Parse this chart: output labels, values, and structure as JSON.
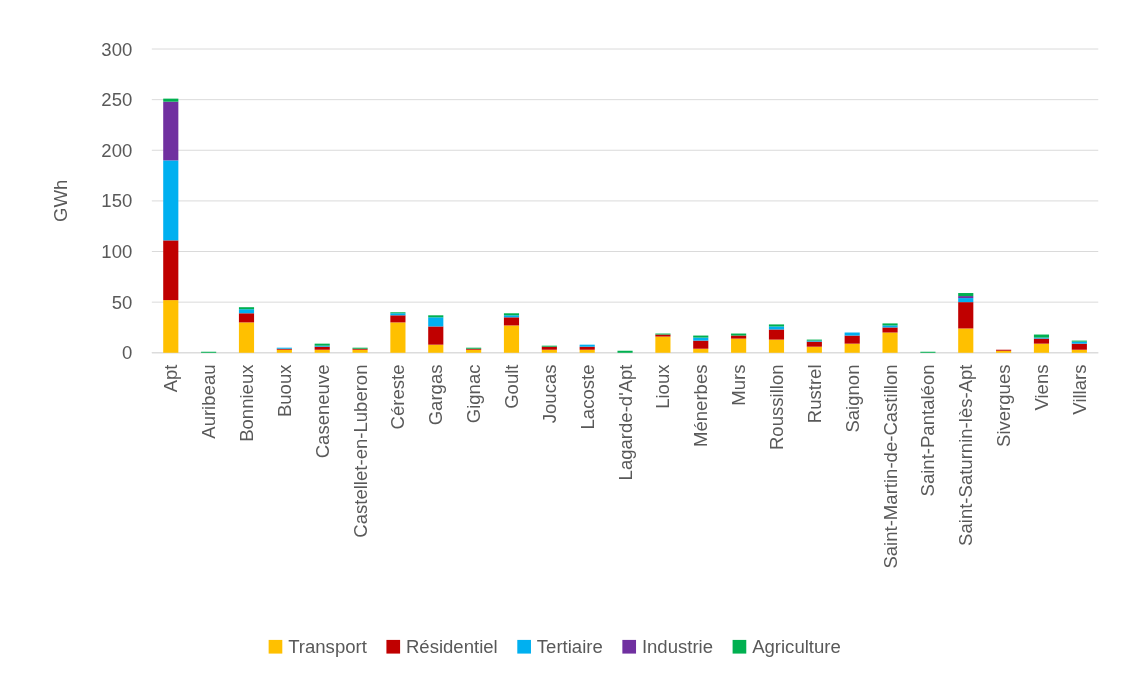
{
  "chart_data": {
    "type": "bar",
    "stacked": true,
    "ylabel": "GWh",
    "ylim": [
      0,
      300
    ],
    "yticks": [
      0,
      50,
      100,
      150,
      200,
      250,
      300
    ],
    "grid": "y",
    "legend": "bottom",
    "categories": [
      "Apt",
      "Auribeau",
      "Bonnieux",
      "Buoux",
      "Caseneuve",
      "Castellet-en-Luberon",
      "Céreste",
      "Gargas",
      "Gignac",
      "Goult",
      "Joucas",
      "Lacoste",
      "Lagarde-d'Apt",
      "Lioux",
      "Ménerbes",
      "Murs",
      "Roussillon",
      "Rustrel",
      "Saignon",
      "Saint-Martin-de-Castillon",
      "Saint-Pantaléon",
      "Saint-Saturnin-lès-Apt",
      "Sivergues",
      "Viens",
      "Villars"
    ],
    "series": [
      {
        "name": "Transport",
        "color": "#ffc000",
        "values": [
          52,
          0,
          30,
          3,
          3,
          3,
          30,
          8,
          3,
          27,
          3,
          3,
          0,
          16,
          4,
          14,
          13,
          6,
          9,
          20,
          0,
          24,
          2,
          9,
          3
        ]
      },
      {
        "name": "Résidentiel",
        "color": "#c00000",
        "values": [
          59,
          0,
          9,
          1,
          3,
          1,
          7,
          18,
          1,
          8,
          3,
          3,
          0,
          2,
          8,
          3,
          10,
          5,
          8,
          5,
          0,
          26,
          1,
          5,
          6
        ]
      },
      {
        "name": "Tertiaire",
        "color": "#00b0f0",
        "values": [
          79,
          0,
          4,
          1,
          1,
          0,
          2,
          9,
          0,
          2,
          0,
          2,
          0,
          0,
          3,
          0,
          3,
          1,
          3,
          2,
          0,
          4,
          0,
          1,
          2
        ]
      },
      {
        "name": "Industrie",
        "color": "#7030a0",
        "values": [
          58,
          0,
          0,
          0,
          0,
          0,
          0,
          0,
          0,
          0,
          0,
          0,
          0,
          0,
          0,
          0,
          0,
          0,
          0,
          0,
          0,
          2,
          0,
          0,
          0
        ]
      },
      {
        "name": "Agriculture",
        "color": "#00b050",
        "values": [
          3,
          1,
          2,
          0,
          2,
          1,
          1,
          2,
          1,
          2,
          1,
          0,
          2,
          1,
          2,
          2,
          2,
          1,
          0,
          2,
          1,
          3,
          0,
          3,
          1
        ]
      }
    ]
  }
}
